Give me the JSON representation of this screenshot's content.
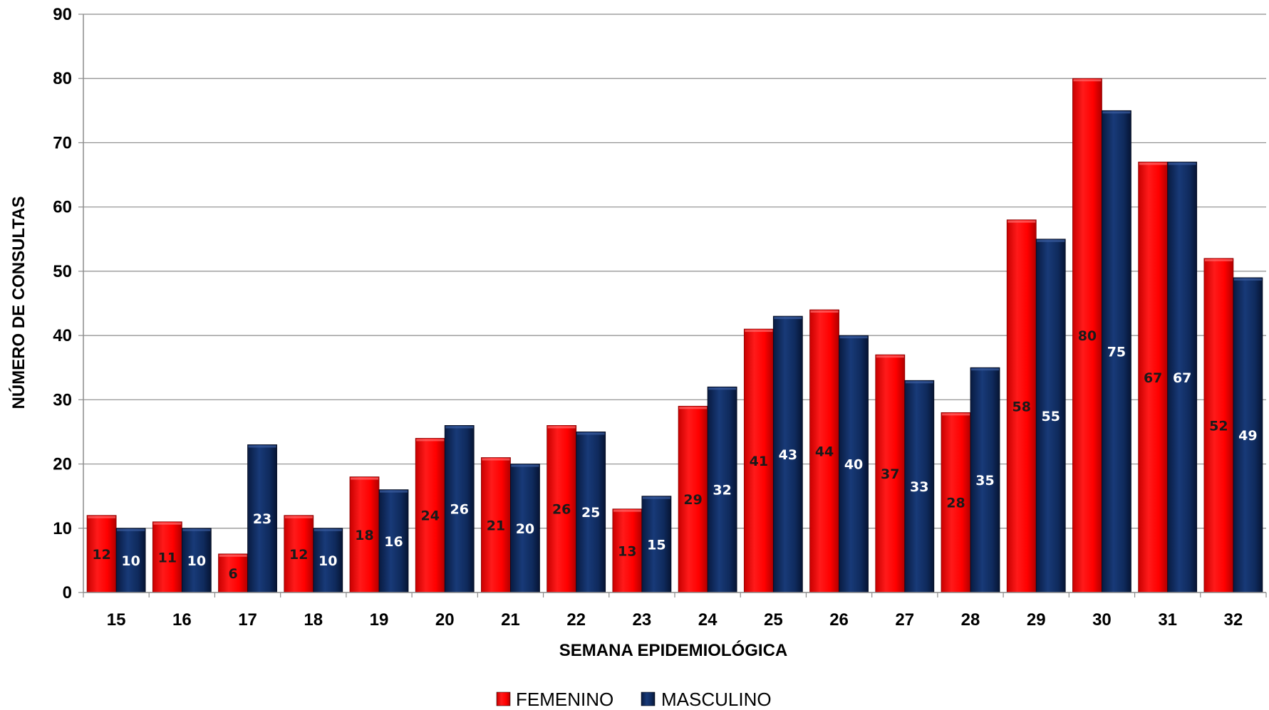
{
  "chart_data": {
    "type": "bar",
    "xlabel": "SEMANA EPIDEMIOLÓGICA",
    "ylabel": "NÚMERO DE CONSULTAS",
    "ylim": [
      0,
      90
    ],
    "yticks": [
      0,
      10,
      20,
      30,
      40,
      50,
      60,
      70,
      80,
      90
    ],
    "grid": true,
    "legend_position": "bottom",
    "categories": [
      "15",
      "16",
      "17",
      "18",
      "19",
      "20",
      "21",
      "22",
      "23",
      "24",
      "25",
      "26",
      "27",
      "28",
      "29",
      "30",
      "31",
      "32"
    ],
    "series": [
      {
        "name": "FEMENINO",
        "color": "#ff0000",
        "label_color": "#1a1a1a",
        "values": [
          12,
          11,
          6,
          12,
          18,
          24,
          21,
          26,
          13,
          29,
          41,
          44,
          37,
          28,
          58,
          80,
          67,
          52
        ]
      },
      {
        "name": "MASCULINO",
        "color": "#0f2a5c",
        "label_color": "#ffffff",
        "values": [
          10,
          10,
          23,
          10,
          16,
          26,
          20,
          25,
          15,
          32,
          43,
          40,
          33,
          35,
          55,
          75,
          67,
          49
        ]
      }
    ]
  }
}
